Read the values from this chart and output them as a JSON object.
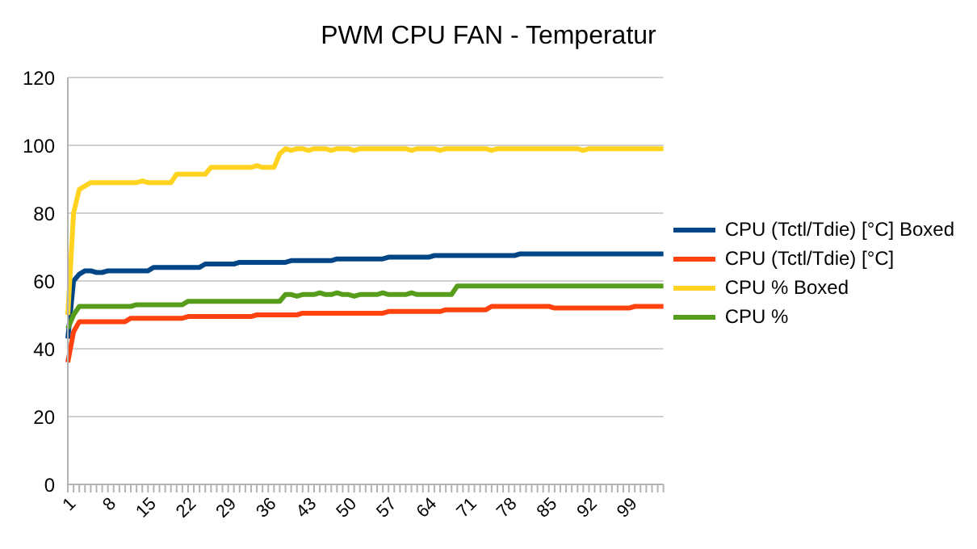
{
  "chart_data": {
    "type": "line",
    "title": "PWM CPU FAN - Temperatur",
    "categories": [
      "1",
      null,
      null,
      null,
      null,
      null,
      null,
      "8",
      null,
      null,
      null,
      null,
      null,
      null,
      "15",
      null,
      null,
      null,
      null,
      null,
      null,
      "22",
      null,
      null,
      null,
      null,
      null,
      null,
      "29",
      null,
      null,
      null,
      null,
      null,
      null,
      "36",
      null,
      null,
      null,
      null,
      null,
      null,
      "43",
      null,
      null,
      null,
      null,
      null,
      null,
      "50",
      null,
      null,
      null,
      null,
      null,
      null,
      "57",
      null,
      null,
      null,
      null,
      null,
      null,
      "64",
      null,
      null,
      null,
      null,
      null,
      null,
      "71",
      null,
      null,
      null,
      null,
      null,
      null,
      "78",
      null,
      null,
      null,
      null,
      null,
      null,
      "85",
      null,
      null,
      null,
      null,
      null,
      null,
      "92",
      null,
      null,
      null,
      null,
      null,
      null,
      "99",
      null,
      null,
      null,
      null,
      null,
      null
    ],
    "series": [
      {
        "name": "CPU (Tctl/Tdie) [°C] Boxed",
        "color": "#004586",
        "values": [
          43,
          60,
          62,
          63,
          63,
          62.5,
          62.5,
          63,
          63,
          63,
          63,
          63,
          63,
          63,
          63,
          64,
          64,
          64,
          64,
          64,
          64,
          64,
          64,
          64,
          65,
          65,
          65,
          65,
          65,
          65,
          65.5,
          65.5,
          65.5,
          65.5,
          65.5,
          65.5,
          65.5,
          65.5,
          65.5,
          66,
          66,
          66,
          66,
          66,
          66,
          66,
          66,
          66.5,
          66.5,
          66.5,
          66.5,
          66.5,
          66.5,
          66.5,
          66.5,
          66.5,
          67,
          67,
          67,
          67,
          67,
          67,
          67,
          67,
          67.5,
          67.5,
          67.5,
          67.5,
          67.5,
          67.5,
          67.5,
          67.5,
          67.5,
          67.5,
          67.5,
          67.5,
          67.5,
          67.5,
          67.5,
          68,
          68,
          68,
          68,
          68,
          68,
          68,
          68,
          68,
          68,
          68,
          68,
          68,
          68,
          68,
          68,
          68,
          68,
          68,
          68,
          68,
          68,
          68,
          68,
          68,
          68
        ]
      },
      {
        "name": "CPU (Tctl/Tdie) [°C]",
        "color": "#ff420e",
        "values": [
          36,
          45,
          48,
          48,
          48,
          48,
          48,
          48,
          48,
          48,
          48,
          49,
          49,
          49,
          49,
          49,
          49,
          49,
          49,
          49,
          49,
          49.5,
          49.5,
          49.5,
          49.5,
          49.5,
          49.5,
          49.5,
          49.5,
          49.5,
          49.5,
          49.5,
          49.5,
          50,
          50,
          50,
          50,
          50,
          50,
          50,
          50,
          50.5,
          50.5,
          50.5,
          50.5,
          50.5,
          50.5,
          50.5,
          50.5,
          50.5,
          50.5,
          50.5,
          50.5,
          50.5,
          50.5,
          50.5,
          51,
          51,
          51,
          51,
          51,
          51,
          51,
          51,
          51,
          51,
          51.5,
          51.5,
          51.5,
          51.5,
          51.5,
          51.5,
          51.5,
          51.5,
          52.5,
          52.5,
          52.5,
          52.5,
          52.5,
          52.5,
          52.5,
          52.5,
          52.5,
          52.5,
          52.5,
          52,
          52,
          52,
          52,
          52,
          52,
          52,
          52,
          52,
          52,
          52,
          52,
          52,
          52,
          52.5,
          52.5,
          52.5,
          52.5,
          52.5,
          52.5
        ]
      },
      {
        "name": "CPU % Boxed",
        "color": "#ffd320",
        "values": [
          50,
          80,
          87,
          88,
          89,
          89,
          89,
          89,
          89,
          89,
          89,
          89,
          89,
          89.5,
          89,
          89,
          89,
          89,
          89,
          91.5,
          91.5,
          91.5,
          91.5,
          91.5,
          91.5,
          93.5,
          93.5,
          93.5,
          93.5,
          93.5,
          93.5,
          93.5,
          93.5,
          94,
          93.5,
          93.5,
          93.5,
          97.5,
          99,
          98.5,
          99,
          99,
          98.5,
          99,
          99,
          99,
          98.5,
          99,
          99,
          99,
          98.5,
          99,
          99,
          99,
          99,
          99,
          99,
          99,
          99,
          99,
          98.5,
          99,
          99,
          99,
          99,
          98.5,
          99,
          99,
          99,
          99,
          99,
          99,
          99,
          99,
          98.5,
          99,
          99,
          99,
          99,
          99,
          99,
          99,
          99,
          99,
          99,
          99,
          99,
          99,
          99,
          99,
          98.5,
          99,
          99,
          99,
          99,
          99,
          99,
          99,
          99,
          99,
          99,
          99,
          99,
          99,
          99
        ]
      },
      {
        "name": "CPU %",
        "color": "#579d1c",
        "values": [
          46,
          50,
          52.5,
          52.5,
          52.5,
          52.5,
          52.5,
          52.5,
          52.5,
          52.5,
          52.5,
          52.5,
          53,
          53,
          53,
          53,
          53,
          53,
          53,
          53,
          53,
          54,
          54,
          54,
          54,
          54,
          54,
          54,
          54,
          54,
          54,
          54,
          54,
          54,
          54,
          54,
          54,
          54,
          56,
          56,
          55.5,
          56,
          56,
          56,
          56.5,
          56,
          56,
          56.5,
          56,
          56,
          55.5,
          56,
          56,
          56,
          56,
          56.5,
          56,
          56,
          56,
          56,
          56.5,
          56,
          56,
          56,
          56,
          56,
          56,
          56,
          58.5,
          58.5,
          58.5,
          58.5,
          58.5,
          58.5,
          58.5,
          58.5,
          58.5,
          58.5,
          58.5,
          58.5,
          58.5,
          58.5,
          58.5,
          58.5,
          58.5,
          58.5,
          58.5,
          58.5,
          58.5,
          58.5,
          58.5,
          58.5,
          58.5,
          58.5,
          58.5,
          58.5,
          58.5,
          58.5,
          58.5,
          58.5,
          58.5,
          58.5,
          58.5,
          58.5,
          58.5
        ]
      }
    ],
    "ylim": [
      0,
      120
    ],
    "yticks": [
      0,
      20,
      40,
      60,
      80,
      100,
      120
    ],
    "grid": "y",
    "legend": "right",
    "line_style": "solid",
    "marker": "none"
  }
}
